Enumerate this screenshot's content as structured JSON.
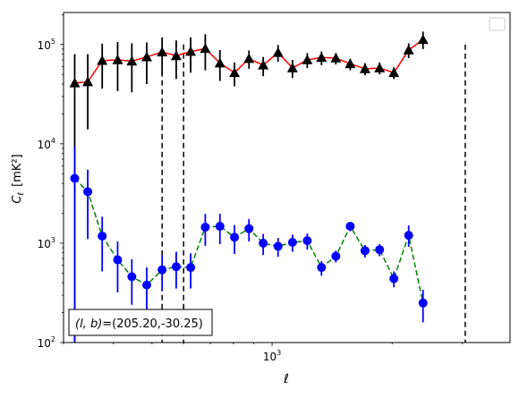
{
  "chart_data": {
    "type": "scatter",
    "xlabel": "ℓ",
    "ylabel_main": "C",
    "ylabel_sub": "ℓ",
    "ylabel_unit": "[mK²]",
    "xscale": "log",
    "yscale": "log",
    "xlim": [
      300,
      3950
    ],
    "ylim": [
      100,
      210000
    ],
    "x_tick_labels": [
      {
        "value": 1000,
        "label": "10",
        "exp": "3"
      }
    ],
    "y_tick_labels": [
      {
        "value": 100,
        "label": "10",
        "exp": "2"
      },
      {
        "value": 1000,
        "label": "10",
        "exp": "3"
      },
      {
        "value": 10000,
        "label": "10",
        "exp": "4"
      },
      {
        "value": 100000,
        "label": "10",
        "exp": "5"
      }
    ],
    "annotation": {
      "prefix": "(l, b)",
      "text": "=(205.20,-30.25)"
    },
    "legend": "top-right",
    "vlines": [
      530,
      600,
      3050
    ],
    "series": [
      {
        "marker": "triangle",
        "color": "#000000",
        "line_color": "#ff0000",
        "line_style": "solid",
        "points": [
          {
            "x": 320,
            "y": 41000,
            "lo": 100,
            "hi": 80000
          },
          {
            "x": 345,
            "y": 42000,
            "lo": 14000,
            "hi": 80000
          },
          {
            "x": 375,
            "y": 69000,
            "lo": 36000,
            "hi": 102000
          },
          {
            "x": 410,
            "y": 70000,
            "lo": 34000,
            "hi": 106000
          },
          {
            "x": 445,
            "y": 68000,
            "lo": 33000,
            "hi": 103000
          },
          {
            "x": 485,
            "y": 75000,
            "lo": 40000,
            "hi": 105000
          },
          {
            "x": 530,
            "y": 84000,
            "lo": 50000,
            "hi": 118000
          },
          {
            "x": 575,
            "y": 77000,
            "lo": 45000,
            "hi": 110000
          },
          {
            "x": 625,
            "y": 85000,
            "lo": 52000,
            "hi": 118000
          },
          {
            "x": 680,
            "y": 91000,
            "lo": 55000,
            "hi": 127000
          },
          {
            "x": 740,
            "y": 65000,
            "lo": 43000,
            "hi": 88000
          },
          {
            "x": 805,
            "y": 52000,
            "lo": 38000,
            "hi": 66000
          },
          {
            "x": 875,
            "y": 72000,
            "lo": 57000,
            "hi": 87000
          },
          {
            "x": 950,
            "y": 62000,
            "lo": 48000,
            "hi": 75000
          },
          {
            "x": 1035,
            "y": 83000,
            "lo": 67000,
            "hi": 99000
          },
          {
            "x": 1125,
            "y": 58000,
            "lo": 46000,
            "hi": 70000
          },
          {
            "x": 1225,
            "y": 70000,
            "lo": 58000,
            "hi": 82000
          },
          {
            "x": 1330,
            "y": 74000,
            "lo": 62000,
            "hi": 85000
          },
          {
            "x": 1445,
            "y": 73000,
            "lo": 63000,
            "hi": 82000
          },
          {
            "x": 1570,
            "y": 64000,
            "lo": 55000,
            "hi": 72000
          },
          {
            "x": 1710,
            "y": 57000,
            "lo": 49000,
            "hi": 65000
          },
          {
            "x": 1860,
            "y": 58000,
            "lo": 50000,
            "hi": 66000
          },
          {
            "x": 2020,
            "y": 52000,
            "lo": 45000,
            "hi": 59000
          },
          {
            "x": 2200,
            "y": 88000,
            "lo": 73000,
            "hi": 103000
          },
          {
            "x": 2390,
            "y": 112000,
            "lo": 90000,
            "hi": 135000
          }
        ]
      },
      {
        "marker": "circle",
        "color": "#0000ff",
        "line_color": "#008000",
        "line_style": "dashed",
        "points": [
          {
            "x": 320,
            "y": 4500,
            "lo": 100,
            "hi": 9500
          },
          {
            "x": 345,
            "y": 3300,
            "lo": 1100,
            "hi": 5500
          },
          {
            "x": 375,
            "y": 1180,
            "lo": 520,
            "hi": 1850
          },
          {
            "x": 410,
            "y": 680,
            "lo": 320,
            "hi": 1040
          },
          {
            "x": 445,
            "y": 460,
            "lo": 240,
            "hi": 690
          },
          {
            "x": 485,
            "y": 380,
            "lo": 190,
            "hi": 570
          },
          {
            "x": 530,
            "y": 540,
            "lo": 330,
            "hi": 760
          },
          {
            "x": 575,
            "y": 580,
            "lo": 350,
            "hi": 820
          },
          {
            "x": 625,
            "y": 570,
            "lo": 350,
            "hi": 790
          },
          {
            "x": 680,
            "y": 1450,
            "lo": 940,
            "hi": 1970
          },
          {
            "x": 740,
            "y": 1480,
            "lo": 980,
            "hi": 1980
          },
          {
            "x": 805,
            "y": 1150,
            "lo": 780,
            "hi": 1520
          },
          {
            "x": 875,
            "y": 1400,
            "lo": 1040,
            "hi": 1750
          },
          {
            "x": 950,
            "y": 1000,
            "lo": 760,
            "hi": 1240
          },
          {
            "x": 1035,
            "y": 930,
            "lo": 730,
            "hi": 1130
          },
          {
            "x": 1125,
            "y": 1020,
            "lo": 820,
            "hi": 1220
          },
          {
            "x": 1225,
            "y": 1060,
            "lo": 860,
            "hi": 1250
          },
          {
            "x": 1330,
            "y": 570,
            "lo": 470,
            "hi": 660
          },
          {
            "x": 1445,
            "y": 740,
            "lo": 640,
            "hi": 840
          },
          {
            "x": 1570,
            "y": 1480,
            "lo": 1320,
            "hi": 1620
          },
          {
            "x": 1710,
            "y": 840,
            "lo": 720,
            "hi": 960
          },
          {
            "x": 1860,
            "y": 860,
            "lo": 740,
            "hi": 980
          },
          {
            "x": 2020,
            "y": 440,
            "lo": 360,
            "hi": 520
          },
          {
            "x": 2200,
            "y": 1200,
            "lo": 920,
            "hi": 1510
          },
          {
            "x": 2390,
            "y": 250,
            "lo": 160,
            "hi": 340
          }
        ]
      }
    ]
  }
}
